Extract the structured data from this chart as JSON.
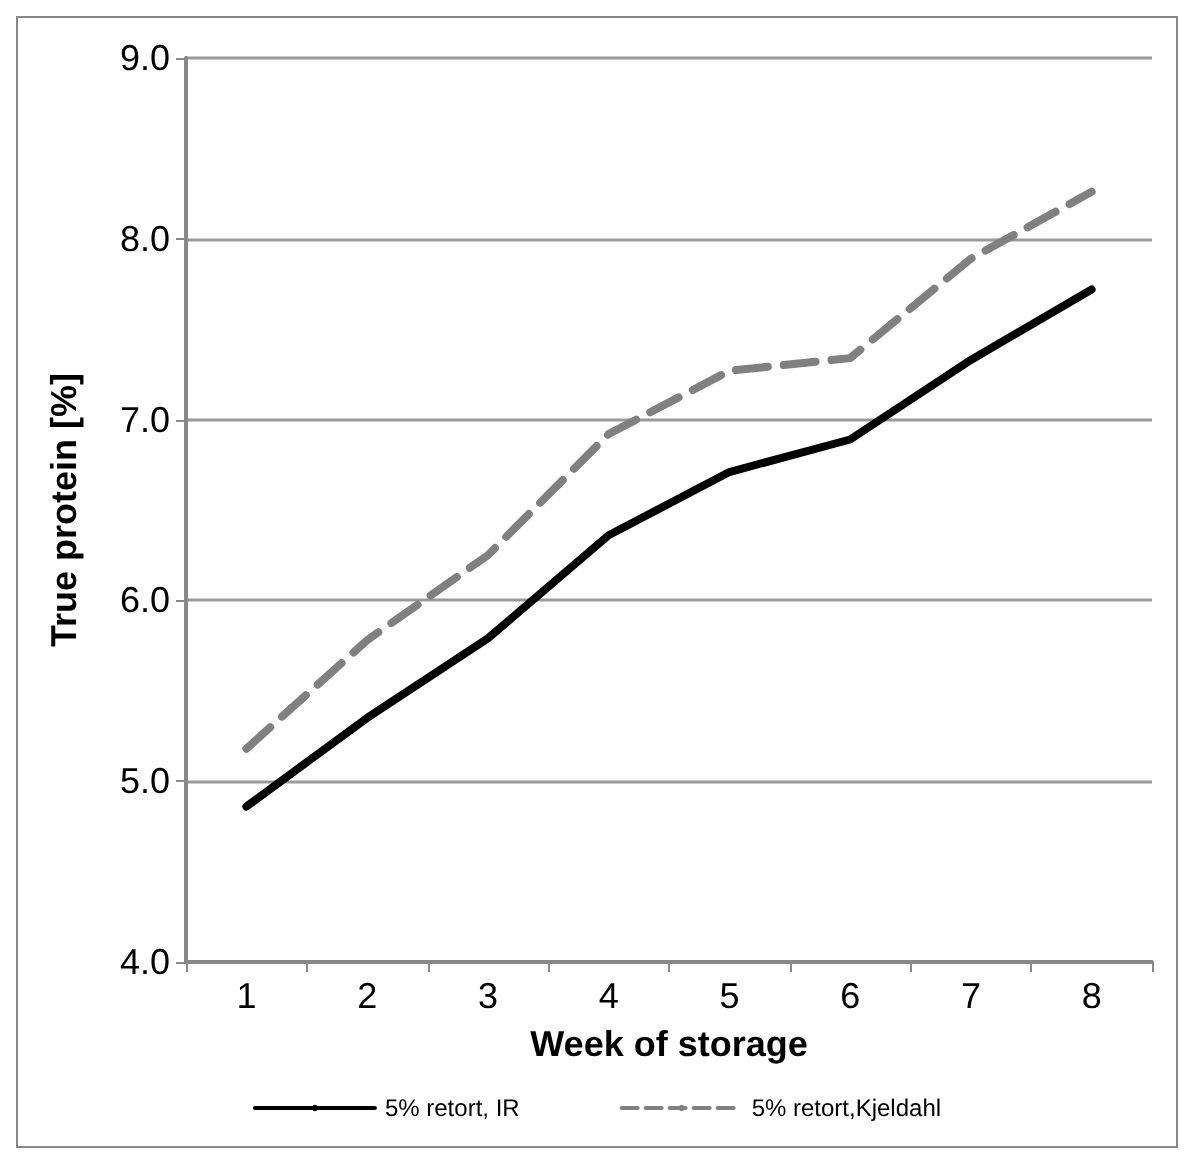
{
  "chart_data": {
    "type": "line",
    "xlabel": "Week of storage",
    "ylabel": "True protein [%]",
    "categories": [
      "1",
      "2",
      "3",
      "4",
      "5",
      "6",
      "7",
      "8"
    ],
    "series": [
      {
        "name": "5% retort, IR",
        "color": "#000000",
        "line_style": "solid",
        "values": [
          4.86,
          5.35,
          5.79,
          6.36,
          6.71,
          6.89,
          7.33,
          7.72
        ]
      },
      {
        "name": "5% retort,Kjeldahl",
        "color": "#808080",
        "line_style": "dashed",
        "values": [
          5.18,
          5.78,
          6.25,
          6.92,
          7.27,
          7.34,
          7.89,
          8.26
        ]
      }
    ],
    "ylim": [
      4,
      9
    ],
    "yticks": [
      {
        "value": 4,
        "label": "4.0"
      },
      {
        "value": 5,
        "label": "5.0"
      },
      {
        "value": 6,
        "label": "6.0"
      },
      {
        "value": 7,
        "label": "7.0"
      },
      {
        "value": 8,
        "label": "8.0"
      },
      {
        "value": 9,
        "label": "9.0"
      }
    ],
    "grid": "y",
    "legend": "bottom",
    "marker": "none"
  }
}
